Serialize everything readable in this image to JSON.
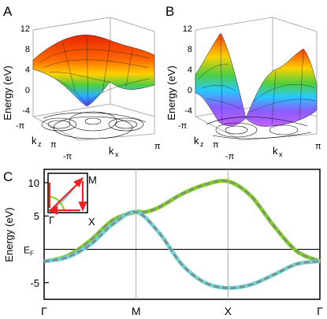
{
  "panel_labels": {
    "a": "A",
    "b": "B",
    "c": "C"
  },
  "panels_3d": [
    {
      "label": "A",
      "zlabel": "Energy (eV)",
      "zticks": [
        "12",
        "8",
        "4",
        "0",
        "-4"
      ],
      "kz_label": "k",
      "kz_sub": "z",
      "kx_label": "k",
      "kx_sub": "x",
      "ticks": {
        "kz_lo": "-π",
        "kz_hi": "π",
        "kx_lo": "-π",
        "kx_hi": "π"
      }
    },
    {
      "label": "B",
      "zlabel": "Energy (eV)",
      "zticks": [
        "12",
        "8",
        "4",
        "0",
        "-4"
      ],
      "kz_label": "k",
      "kz_sub": "z",
      "kx_label": "k",
      "kx_sub": "x",
      "ticks": {
        "kz_lo": "-π",
        "kz_hi": "π",
        "kx_lo": "-π",
        "kx_hi": "π"
      }
    }
  ],
  "inset": {
    "labels": {
      "gamma": "Γ",
      "m": "M",
      "x": "X"
    },
    "arrow_color": "#ee2222"
  },
  "chart_data": {
    "type": "line",
    "ylabel": "Energy (eV)",
    "fermi_label": "E",
    "fermi_sub": "F",
    "fermi_level": 0,
    "ylim": [
      -7.5,
      12
    ],
    "yticks": [
      -5,
      5,
      10
    ],
    "categories": [
      "Γ",
      "M",
      "X",
      "Γ"
    ],
    "x": [
      0,
      1,
      2,
      3
    ],
    "series": [
      {
        "role": "upper band",
        "color": "#7ed321",
        "x": [
          0,
          0.25,
          0.5,
          0.75,
          1,
          1.1,
          1.25,
          1.5,
          1.75,
          2,
          2.25,
          2.5,
          2.75,
          3
        ],
        "values": [
          -1.8,
          -1.0,
          1.3,
          4.4,
          5.6,
          5.6,
          6.3,
          8.3,
          9.7,
          10.2,
          8.0,
          3.5,
          -0.3,
          -1.8
        ]
      },
      {
        "role": "lower band",
        "color": "#6fd6d6",
        "x": [
          0,
          0.25,
          0.5,
          0.75,
          1,
          1.25,
          1.5,
          1.75,
          2,
          2.25,
          2.5,
          2.75,
          3
        ],
        "values": [
          -1.8,
          -1.2,
          0.7,
          3.8,
          5.6,
          2.5,
          -2.3,
          -5.0,
          -5.8,
          -5.3,
          -3.8,
          -2.2,
          -1.8
        ]
      }
    ],
    "dashed_overlay_color": "#888888",
    "vlines": [
      1,
      2
    ]
  },
  "colors": {
    "surface_top": "#ff2a00",
    "surface_mid": "#ffcc00",
    "surface_low": "#3aa0ff",
    "surface_bottom": "#b050ff",
    "axis": "#000000",
    "grid": "#bbbbbb"
  }
}
